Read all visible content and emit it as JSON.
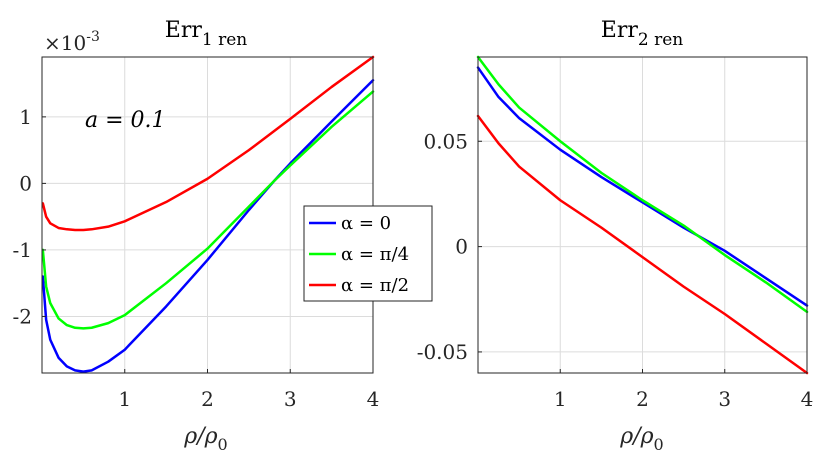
{
  "chart_data": [
    {
      "type": "line",
      "title": "Err",
      "title_sub": "1 ren",
      "xlabel": "ρ/ρ",
      "xlabel_sub": "0",
      "ylabel": "",
      "exponent_label": "×10",
      "exponent_power": "-3",
      "annotation": "a = 0.1",
      "xlim": [
        0,
        4
      ],
      "ylim": [
        -2.85,
        1.9
      ],
      "xticks": [
        1,
        2,
        3,
        4
      ],
      "xtick_labels": [
        "1",
        "2",
        "3",
        "4"
      ],
      "yticks": [
        -2,
        -1,
        0,
        1
      ],
      "ytick_labels": [
        "-2",
        "-1",
        "0",
        "1"
      ],
      "grid": true,
      "series": [
        {
          "name": "α = 0",
          "color": "#0000ff",
          "x": [
            0.01,
            0.05,
            0.1,
            0.2,
            0.3,
            0.4,
            0.5,
            0.6,
            0.8,
            1.0,
            1.5,
            2.0,
            2.5,
            2.8,
            3.0,
            3.5,
            4.0
          ],
          "y": [
            -1.4,
            -2.05,
            -2.35,
            -2.62,
            -2.75,
            -2.81,
            -2.83,
            -2.81,
            -2.68,
            -2.5,
            -1.85,
            -1.15,
            -0.4,
            0.03,
            0.3,
            0.93,
            1.55
          ]
        },
        {
          "name": "α = π/4",
          "color": "#00ff00",
          "x": [
            0.01,
            0.05,
            0.1,
            0.2,
            0.3,
            0.4,
            0.5,
            0.6,
            0.8,
            1.0,
            1.5,
            2.0,
            2.5,
            2.8,
            3.0,
            3.5,
            4.0
          ],
          "y": [
            -1.0,
            -1.55,
            -1.8,
            -2.03,
            -2.13,
            -2.17,
            -2.18,
            -2.17,
            -2.1,
            -1.98,
            -1.5,
            -0.98,
            -0.35,
            0.03,
            0.27,
            0.85,
            1.38
          ]
        },
        {
          "name": "α = π/2",
          "color": "#ff0000",
          "x": [
            0.01,
            0.05,
            0.1,
            0.2,
            0.3,
            0.4,
            0.5,
            0.6,
            0.8,
            1.0,
            1.5,
            2.0,
            2.5,
            3.0,
            3.5,
            4.0
          ],
          "y": [
            -0.3,
            -0.5,
            -0.6,
            -0.67,
            -0.69,
            -0.7,
            -0.7,
            -0.69,
            -0.65,
            -0.57,
            -0.28,
            0.07,
            0.5,
            0.97,
            1.45,
            1.9
          ]
        }
      ],
      "legend": {
        "position": "right",
        "entries": [
          "α = 0",
          "α = π/4",
          "α = π/2"
        ]
      }
    },
    {
      "type": "line",
      "title": "Err",
      "title_sub": "2 ren",
      "xlabel": "ρ/ρ",
      "xlabel_sub": "0",
      "ylabel": "",
      "xlim": [
        0,
        4
      ],
      "ylim": [
        -0.06,
        0.09
      ],
      "xticks": [
        1,
        2,
        3,
        4
      ],
      "xtick_labels": [
        "1",
        "2",
        "3",
        "4"
      ],
      "yticks": [
        -0.05,
        0,
        0.05
      ],
      "ytick_labels": [
        "-0.05",
        "0",
        "0.05"
      ],
      "grid": true,
      "series": [
        {
          "name": "α = 0",
          "color": "#0000ff",
          "x": [
            0,
            0.25,
            0.5,
            1.0,
            1.5,
            2.0,
            2.5,
            3.0,
            3.5,
            4.0
          ],
          "y": [
            0.085,
            0.071,
            0.061,
            0.046,
            0.033,
            0.021,
            0.009,
            -0.002,
            -0.015,
            -0.028
          ]
        },
        {
          "name": "α = π/4",
          "color": "#00ff00",
          "x": [
            0,
            0.25,
            0.5,
            1.0,
            1.5,
            2.0,
            2.5,
            3.0,
            3.5,
            4.0
          ],
          "y": [
            0.09,
            0.077,
            0.066,
            0.05,
            0.035,
            0.022,
            0.01,
            -0.004,
            -0.017,
            -0.031
          ]
        },
        {
          "name": "α = π/2",
          "color": "#ff0000",
          "x": [
            0,
            0.25,
            0.5,
            1.0,
            1.5,
            2.0,
            2.5,
            3.0,
            3.5,
            4.0
          ],
          "y": [
            0.062,
            0.049,
            0.038,
            0.022,
            0.009,
            -0.005,
            -0.019,
            -0.032,
            -0.046,
            -0.06
          ]
        }
      ]
    }
  ]
}
